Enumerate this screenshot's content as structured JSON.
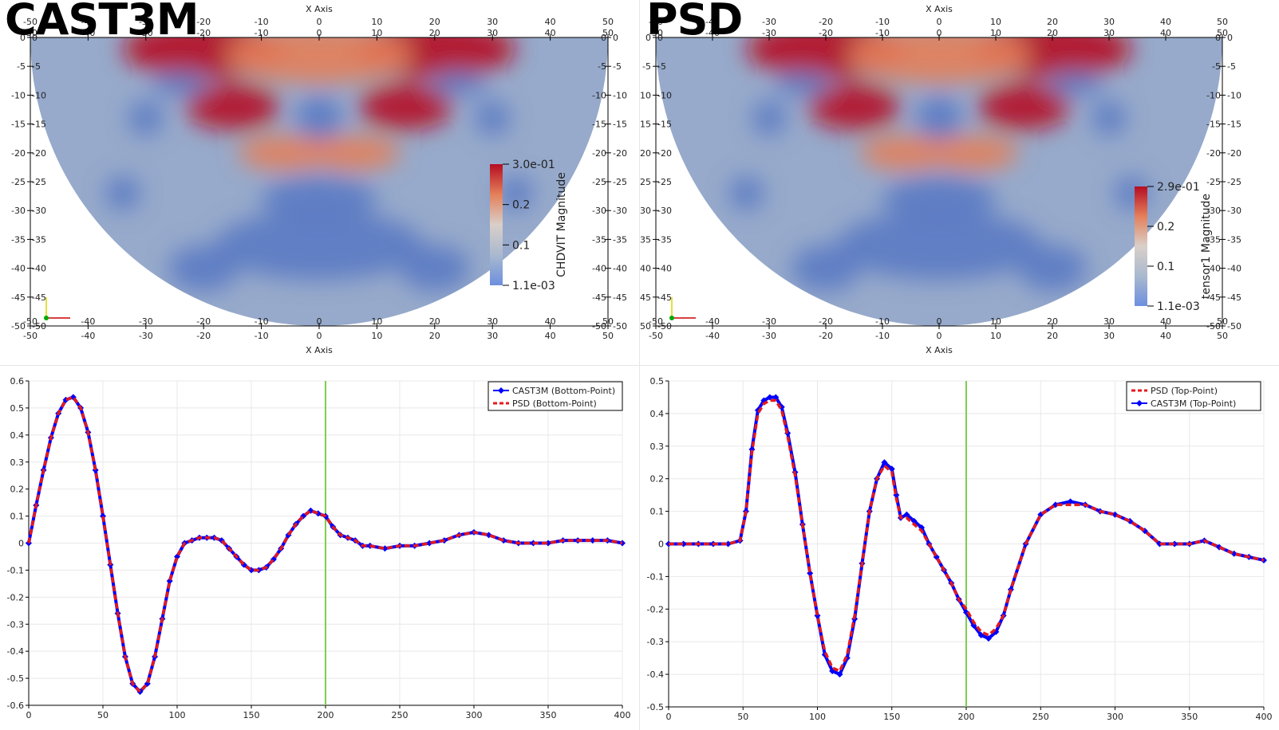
{
  "colors": {
    "cool": "#5b7ac3",
    "mid": "#a9b9cf",
    "warm": "#e4805a",
    "hot": "#b50d22",
    "curve_blue": "#0000ff",
    "curve_red": "#e41a1c",
    "time_marker": "#7ccf4e",
    "grid": "#e8e8e8"
  },
  "panels": {
    "cast3m_field": {
      "title": "CAST3M",
      "colorbar_title": "CHDVIT Magnitude",
      "colorbar_labels": [
        "3.0e-01",
        "0.2",
        "0.1",
        "1.1e-03"
      ],
      "axis_title": "X Axis"
    },
    "psd_field": {
      "title": "PSD",
      "colorbar_title": "tensor1 Magnitude",
      "colorbar_labels": [
        "2.9e-01",
        "0.2",
        "0.1",
        "1.1e-03"
      ],
      "axis_title": "X Axis"
    }
  },
  "chart_data": [
    {
      "type": "line",
      "title": "",
      "xlabel": "",
      "ylabel": "",
      "xlim": [
        0,
        400
      ],
      "ylim": [
        -0.6,
        0.6
      ],
      "xticks": [
        0,
        50,
        100,
        150,
        200,
        250,
        300,
        350,
        400
      ],
      "yticks": [
        0.6,
        0.5,
        0.4,
        0.3,
        0.2,
        0.1,
        0,
        -0.1,
        -0.2,
        -0.3,
        -0.4,
        -0.5,
        -0.6
      ],
      "grid": true,
      "legend_position": "top-right",
      "time_marker": 200,
      "series": [
        {
          "name": "CAST3M (Bottom-Point)",
          "style": "blue-diamond-line",
          "x": [
            0,
            5,
            10,
            15,
            20,
            25,
            30,
            35,
            40,
            45,
            50,
            55,
            60,
            65,
            70,
            75,
            80,
            85,
            90,
            95,
            100,
            105,
            110,
            115,
            120,
            125,
            130,
            135,
            140,
            145,
            150,
            155,
            160,
            165,
            170,
            175,
            180,
            185,
            190,
            195,
            200,
            205,
            210,
            215,
            220,
            225,
            230,
            240,
            250,
            260,
            270,
            280,
            290,
            300,
            310,
            320,
            330,
            340,
            350,
            360,
            370,
            380,
            390,
            400
          ],
          "y": [
            0,
            0.14,
            0.27,
            0.39,
            0.48,
            0.53,
            0.54,
            0.5,
            0.41,
            0.27,
            0.1,
            -0.08,
            -0.26,
            -0.42,
            -0.52,
            -0.55,
            -0.52,
            -0.42,
            -0.28,
            -0.14,
            -0.05,
            0,
            0.01,
            0.02,
            0.02,
            0.02,
            0.01,
            -0.02,
            -0.05,
            -0.08,
            -0.1,
            -0.1,
            -0.09,
            -0.06,
            -0.02,
            0.03,
            0.07,
            0.1,
            0.12,
            0.11,
            0.1,
            0.06,
            0.03,
            0.02,
            0.01,
            -0.01,
            -0.01,
            -0.02,
            -0.01,
            -0.01,
            0,
            0.01,
            0.03,
            0.04,
            0.03,
            0.01,
            0,
            0,
            0,
            0.01,
            0.01,
            0.01,
            0.01,
            0
          ],
          "markers": true
        },
        {
          "name": "PSD (Bottom-Point)",
          "style": "red-dashed",
          "x": [
            0,
            5,
            10,
            15,
            20,
            25,
            30,
            35,
            40,
            45,
            50,
            55,
            60,
            65,
            70,
            75,
            80,
            85,
            90,
            95,
            100,
            105,
            110,
            115,
            120,
            125,
            130,
            135,
            140,
            145,
            150,
            155,
            160,
            165,
            170,
            175,
            180,
            185,
            190,
            195,
            200,
            205,
            210,
            215,
            220,
            225,
            230,
            240,
            250,
            260,
            270,
            280,
            290,
            300,
            310,
            320,
            330,
            340,
            350,
            360,
            370,
            380,
            390,
            400
          ],
          "y": [
            0,
            0.14,
            0.27,
            0.39,
            0.48,
            0.53,
            0.54,
            0.5,
            0.41,
            0.27,
            0.1,
            -0.08,
            -0.26,
            -0.42,
            -0.52,
            -0.55,
            -0.52,
            -0.42,
            -0.28,
            -0.14,
            -0.05,
            0,
            0.01,
            0.02,
            0.02,
            0.02,
            0.01,
            -0.02,
            -0.05,
            -0.08,
            -0.1,
            -0.1,
            -0.09,
            -0.06,
            -0.02,
            0.03,
            0.07,
            0.1,
            0.12,
            0.11,
            0.1,
            0.06,
            0.03,
            0.02,
            0.01,
            -0.01,
            -0.01,
            -0.02,
            -0.01,
            -0.01,
            0,
            0.01,
            0.03,
            0.04,
            0.03,
            0.01,
            0,
            0,
            0,
            0.01,
            0.01,
            0.01,
            0.01,
            0
          ],
          "markers": false
        }
      ]
    },
    {
      "type": "line",
      "title": "",
      "xlabel": "",
      "ylabel": "",
      "xlim": [
        0,
        400
      ],
      "ylim": [
        -0.5,
        0.5
      ],
      "xticks": [
        0,
        50,
        100,
        150,
        200,
        250,
        300,
        350,
        400
      ],
      "yticks": [
        0.5,
        0.4,
        0.3,
        0.2,
        0.1,
        0,
        -0.1,
        -0.2,
        -0.3,
        -0.4,
        -0.5
      ],
      "grid": true,
      "legend_position": "top-right",
      "time_marker": 200,
      "series": [
        {
          "name": "PSD (Top-Point)",
          "style": "red-dashed",
          "x": [
            0,
            10,
            20,
            30,
            40,
            48,
            52,
            56,
            60,
            64,
            68,
            72,
            76,
            80,
            85,
            90,
            95,
            100,
            105,
            110,
            115,
            120,
            125,
            130,
            135,
            140,
            145,
            150,
            153,
            156,
            160,
            165,
            170,
            175,
            180,
            185,
            190,
            195,
            200,
            205,
            210,
            215,
            220,
            225,
            230,
            240,
            250,
            260,
            270,
            280,
            290,
            300,
            310,
            320,
            330,
            340,
            350,
            360,
            370,
            380,
            390,
            400
          ],
          "y": [
            0,
            0,
            0,
            0,
            0,
            0.01,
            0.1,
            0.28,
            0.4,
            0.43,
            0.44,
            0.44,
            0.41,
            0.33,
            0.21,
            0.06,
            -0.09,
            -0.22,
            -0.33,
            -0.38,
            -0.39,
            -0.34,
            -0.22,
            -0.06,
            0.1,
            0.2,
            0.24,
            0.22,
            0.14,
            0.08,
            0.08,
            0.06,
            0.04,
            0,
            -0.04,
            -0.08,
            -0.12,
            -0.17,
            -0.2,
            -0.24,
            -0.27,
            -0.28,
            -0.26,
            -0.22,
            -0.14,
            0,
            0.09,
            0.12,
            0.12,
            0.12,
            0.1,
            0.09,
            0.07,
            0.04,
            0,
            0,
            0,
            0.01,
            -0.01,
            -0.03,
            -0.04,
            -0.05
          ],
          "markers": false
        },
        {
          "name": "CAST3M (Top-Point)",
          "style": "blue-diamond-line",
          "x": [
            0,
            10,
            20,
            30,
            40,
            48,
            52,
            56,
            60,
            64,
            68,
            72,
            76,
            80,
            85,
            90,
            95,
            100,
            105,
            110,
            115,
            120,
            125,
            130,
            135,
            140,
            145,
            150,
            153,
            156,
            160,
            165,
            170,
            175,
            180,
            185,
            190,
            195,
            200,
            205,
            210,
            215,
            220,
            225,
            230,
            240,
            250,
            260,
            270,
            280,
            290,
            300,
            310,
            320,
            330,
            340,
            350,
            360,
            370,
            380,
            390,
            400
          ],
          "y": [
            0,
            0,
            0,
            0,
            0,
            0.01,
            0.1,
            0.29,
            0.41,
            0.44,
            0.45,
            0.45,
            0.42,
            0.34,
            0.22,
            0.06,
            -0.09,
            -0.22,
            -0.34,
            -0.39,
            -0.4,
            -0.35,
            -0.23,
            -0.06,
            0.1,
            0.2,
            0.25,
            0.23,
            0.15,
            0.08,
            0.09,
            0.07,
            0.05,
            0,
            -0.04,
            -0.08,
            -0.12,
            -0.17,
            -0.21,
            -0.25,
            -0.28,
            -0.29,
            -0.27,
            -0.22,
            -0.14,
            0,
            0.09,
            0.12,
            0.13,
            0.12,
            0.1,
            0.09,
            0.07,
            0.04,
            0,
            0,
            0,
            0.01,
            -0.01,
            -0.03,
            -0.04,
            -0.05
          ],
          "markers": true
        }
      ]
    }
  ]
}
